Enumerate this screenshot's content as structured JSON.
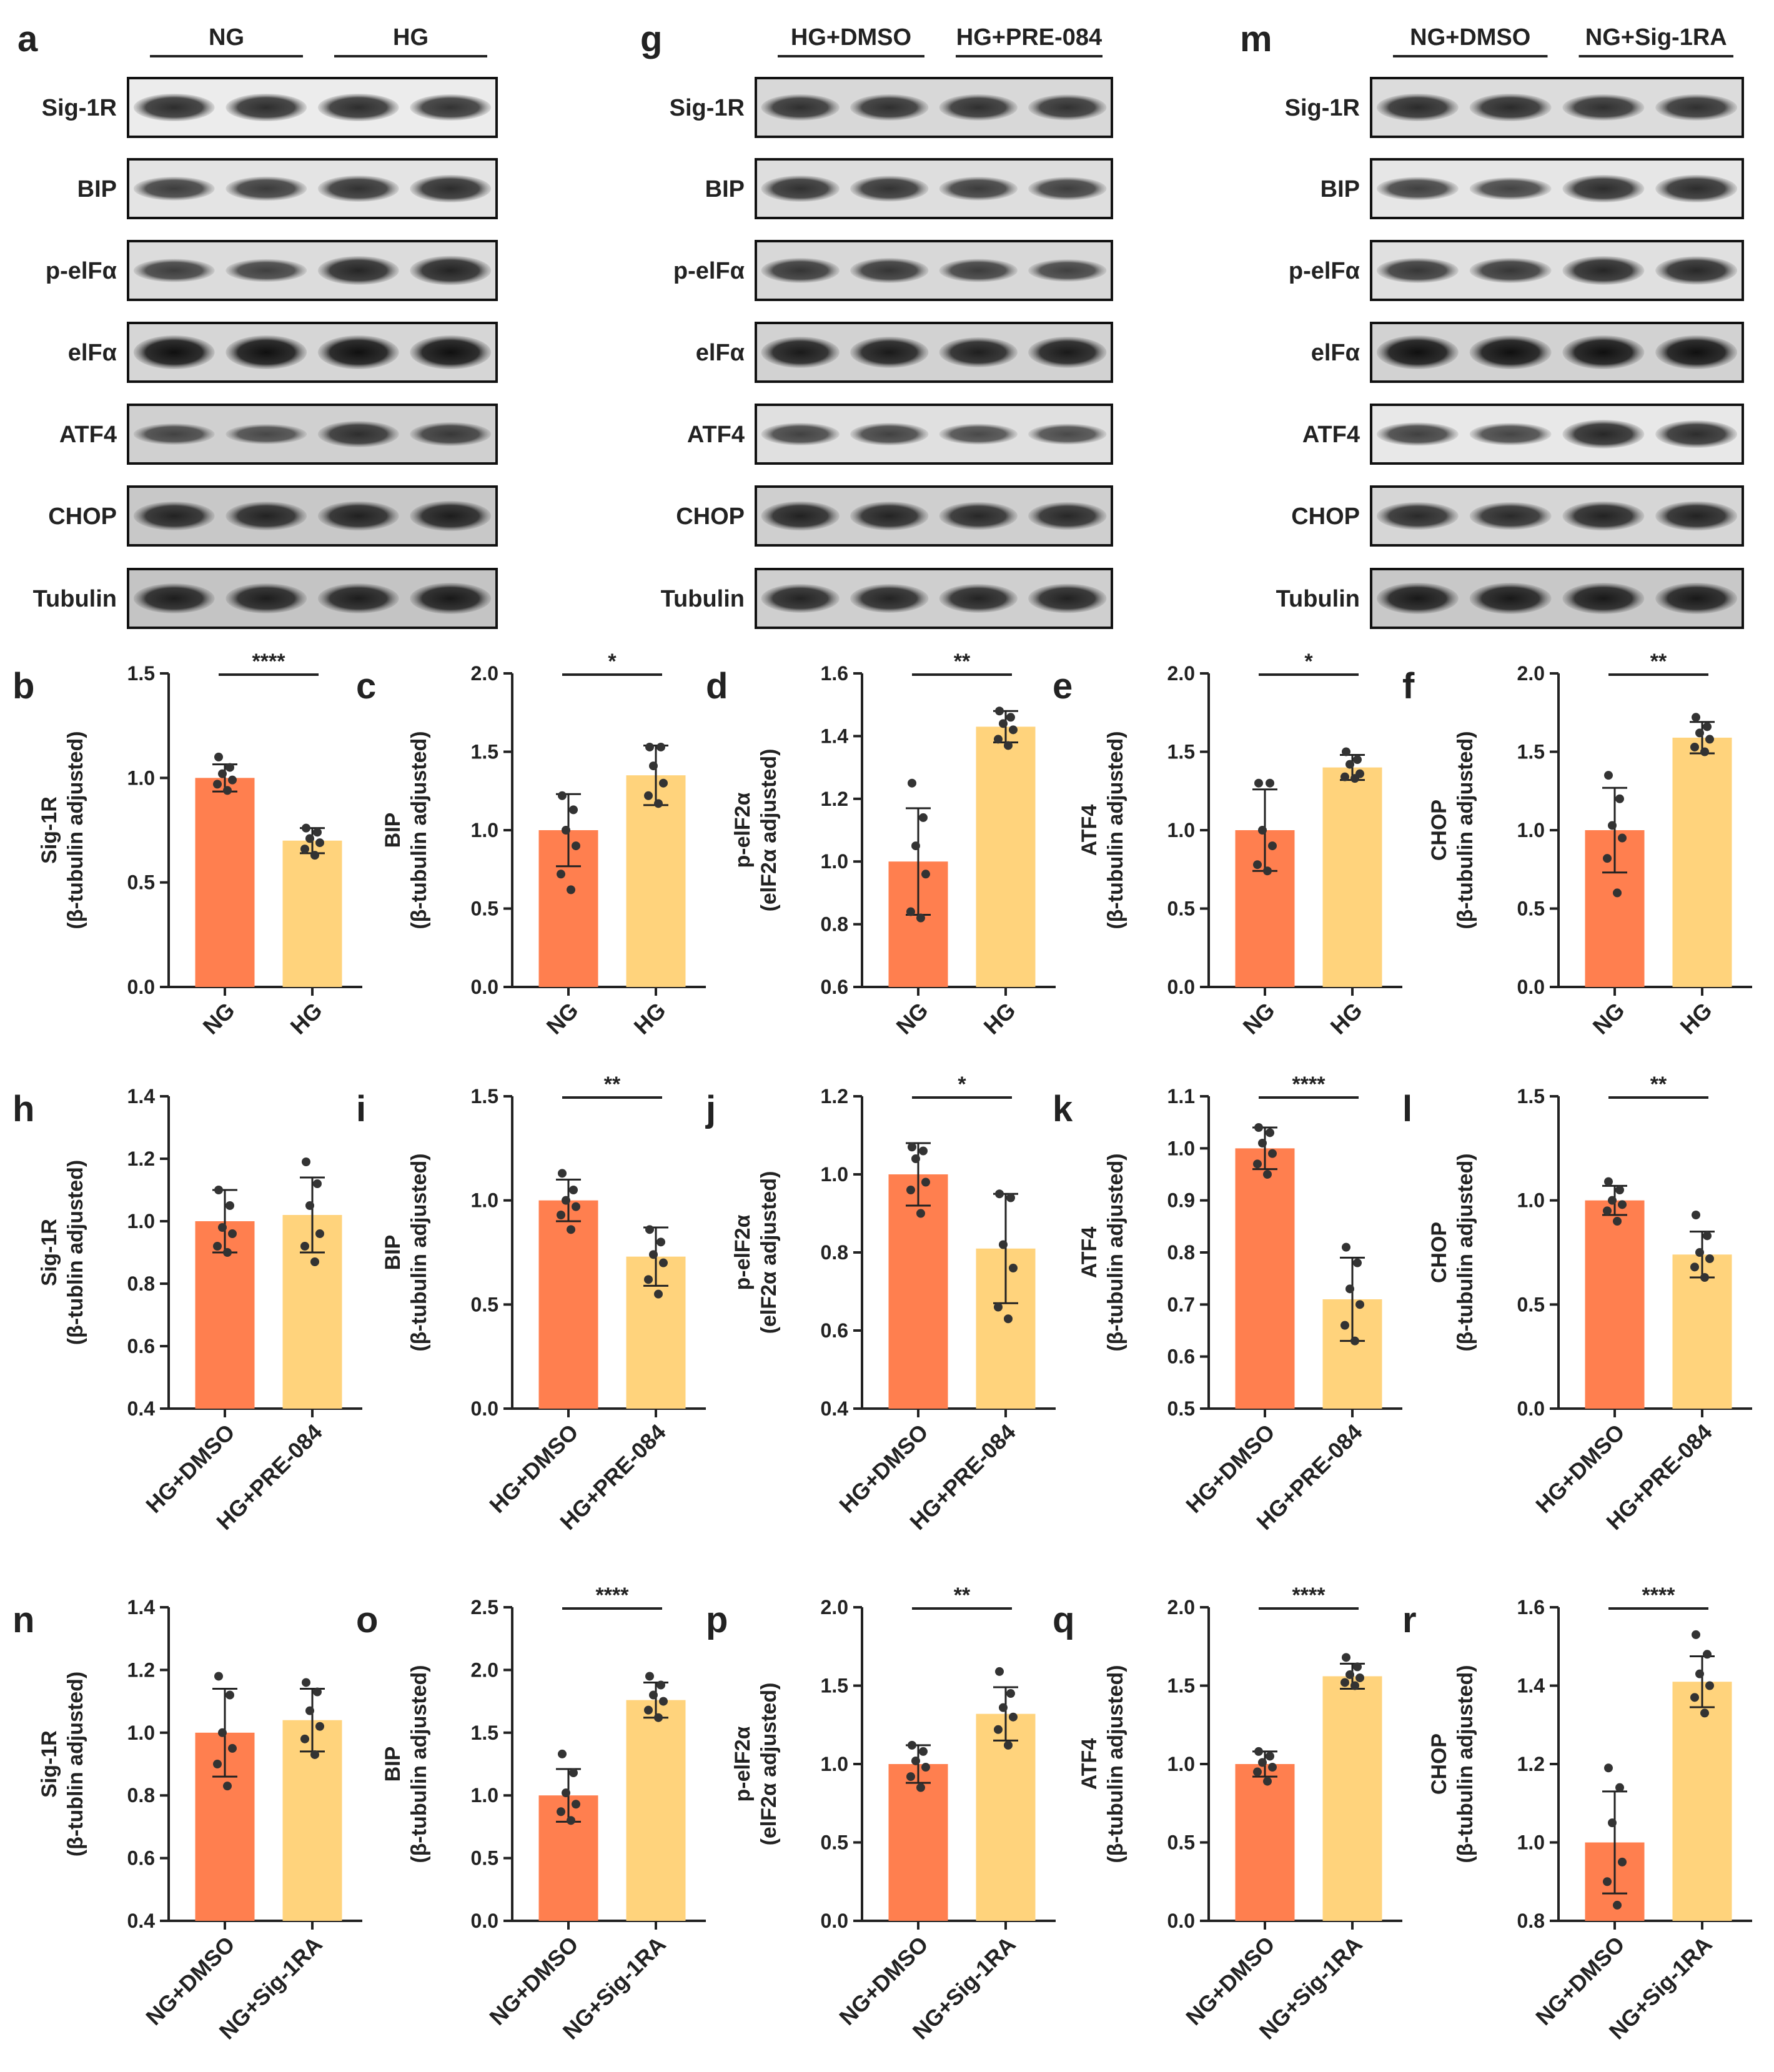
{
  "blot_panels": [
    {
      "letter": "a",
      "groups": [
        "NG",
        "HG"
      ],
      "rows": [
        "Sig-1R",
        "BIP",
        "p-elFα",
        "elFα",
        "ATF4",
        "CHOP",
        "Tubulin"
      ]
    },
    {
      "letter": "g",
      "groups": [
        "HG+DMSO",
        "HG+PRE-084"
      ],
      "rows": [
        "Sig-1R",
        "BIP",
        "p-elFα",
        "elFα",
        "ATF4",
        "CHOP",
        "Tubulin"
      ]
    },
    {
      "letter": "m",
      "groups": [
        "NG+DMSO",
        "NG+Sig-1RA"
      ],
      "rows": [
        "Sig-1R",
        "BIP",
        "p-elFα",
        "elFα",
        "ATF4",
        "CHOP",
        "Tubulin"
      ]
    }
  ],
  "colors": {
    "bar1": "#ff7f4f",
    "bar2": "#ffd37c",
    "axis": "#222222",
    "dot": "#333333"
  },
  "chart_data": [
    {
      "letter": "b",
      "type": "bar",
      "ylabel": [
        "Sig-1R",
        "(β-tubulin adjusted)"
      ],
      "categories": [
        "NG",
        "HG"
      ],
      "values": [
        1.0,
        0.7
      ],
      "errors": [
        0.065,
        0.06
      ],
      "points": [
        [
          1.1,
          1.05,
          1.02,
          0.99,
          0.97,
          0.94
        ],
        [
          0.76,
          0.74,
          0.71,
          0.69,
          0.66,
          0.63
        ]
      ],
      "ylim": [
        0,
        1.5
      ],
      "yticks": [
        "0.0",
        "0.5",
        "1.0",
        "1.5"
      ],
      "significance": "****"
    },
    {
      "letter": "c",
      "type": "bar",
      "ylabel": [
        "BIP",
        "(β-tubulin adjusted)"
      ],
      "categories": [
        "NG",
        "HG"
      ],
      "values": [
        1.0,
        1.35
      ],
      "errors": [
        0.23,
        0.19
      ],
      "points": [
        [
          1.22,
          1.13,
          1.0,
          0.9,
          0.72,
          0.62
        ],
        [
          1.53,
          1.53,
          1.41,
          1.3,
          1.22,
          1.17
        ]
      ],
      "ylim": [
        0,
        2.0
      ],
      "yticks": [
        "0.0",
        "0.5",
        "1.0",
        "1.5",
        "2.0"
      ],
      "significance": "*"
    },
    {
      "letter": "d",
      "type": "bar",
      "ylabel": [
        "p-elF2α",
        "(elF2α adjusted)"
      ],
      "categories": [
        "NG",
        "HG"
      ],
      "values": [
        1.0,
        1.43
      ],
      "errors": [
        0.17,
        0.05
      ],
      "points": [
        [
          1.25,
          1.14,
          1.05,
          0.96,
          0.84,
          0.82
        ],
        [
          1.48,
          1.46,
          1.44,
          1.42,
          1.39,
          1.37
        ]
      ],
      "ylim": [
        0.6,
        1.6
      ],
      "yticks": [
        "0.6",
        "0.8",
        "1.0",
        "1.2",
        "1.4",
        "1.6"
      ],
      "significance": "**"
    },
    {
      "letter": "e",
      "type": "bar",
      "ylabel": [
        "ATF4",
        "(β-tubulin adjusted)"
      ],
      "categories": [
        "NG",
        "HG"
      ],
      "values": [
        1.0,
        1.4
      ],
      "errors": [
        0.26,
        0.08
      ],
      "points": [
        [
          1.3,
          1.3,
          1.0,
          0.9,
          0.78,
          0.74
        ],
        [
          1.5,
          1.45,
          1.42,
          1.36,
          1.34,
          1.33
        ]
      ],
      "ylim": [
        0,
        2.0
      ],
      "yticks": [
        "0.0",
        "0.5",
        "1.0",
        "1.5",
        "2.0"
      ],
      "significance": "*"
    },
    {
      "letter": "f",
      "type": "bar",
      "ylabel": [
        "CHOP",
        "(β-tubulin adjusted)"
      ],
      "categories": [
        "NG",
        "HG"
      ],
      "values": [
        1.0,
        1.59
      ],
      "errors": [
        0.27,
        0.1
      ],
      "points": [
        [
          1.35,
          1.2,
          1.03,
          0.95,
          0.82,
          0.6
        ],
        [
          1.72,
          1.66,
          1.62,
          1.58,
          1.53,
          1.5
        ]
      ],
      "ylim": [
        0,
        2.0
      ],
      "yticks": [
        "0.0",
        "0.5",
        "1.0",
        "1.5",
        "2.0"
      ],
      "significance": "**"
    },
    {
      "letter": "h",
      "type": "bar",
      "ylabel": [
        "Sig-1R",
        "(β-tublin adjusted)"
      ],
      "categories": [
        "HG+DMSO",
        "HG+PRE-084"
      ],
      "values": [
        1.0,
        1.02
      ],
      "errors": [
        0.1,
        0.12
      ],
      "points": [
        [
          1.1,
          1.05,
          0.98,
          0.96,
          0.92,
          0.9
        ],
        [
          1.19,
          1.12,
          1.05,
          0.96,
          0.92,
          0.87
        ]
      ],
      "ylim": [
        0.4,
        1.4
      ],
      "yticks": [
        "0.4",
        "0.6",
        "0.8",
        "1.0",
        "1.2",
        "1.4"
      ],
      "significance": ""
    },
    {
      "letter": "i",
      "type": "bar",
      "ylabel": [
        "BIP",
        "(β-tubulin adjusted)"
      ],
      "categories": [
        "HG+DMSO",
        "HG+PRE-084"
      ],
      "values": [
        1.0,
        0.73
      ],
      "errors": [
        0.1,
        0.14
      ],
      "points": [
        [
          1.13,
          1.05,
          1.0,
          0.97,
          0.93,
          0.86
        ],
        [
          0.86,
          0.8,
          0.74,
          0.7,
          0.62,
          0.55
        ]
      ],
      "ylim": [
        0,
        1.5
      ],
      "yticks": [
        "0.0",
        "0.5",
        "1.0",
        "1.5"
      ],
      "significance": "**"
    },
    {
      "letter": "j",
      "type": "bar",
      "ylabel": [
        "p-elF2α",
        "(elF2α adjusted)"
      ],
      "categories": [
        "HG+DMSO",
        "HG+PRE-084"
      ],
      "values": [
        1.0,
        0.81
      ],
      "errors": [
        0.08,
        0.14
      ],
      "points": [
        [
          1.07,
          1.06,
          1.04,
          0.98,
          0.96,
          0.9
        ],
        [
          0.95,
          0.94,
          0.82,
          0.76,
          0.66,
          0.63
        ]
      ],
      "ylim": [
        0.4,
        1.2
      ],
      "yticks": [
        "0.4",
        "0.6",
        "0.8",
        "1.0",
        "1.2"
      ],
      "significance": "*"
    },
    {
      "letter": "k",
      "type": "bar",
      "ylabel": [
        "ATF4",
        "(β-tubulin adjusted)"
      ],
      "categories": [
        "HG+DMSO",
        "HG+PRE-084"
      ],
      "values": [
        1.0,
        0.71
      ],
      "errors": [
        0.04,
        0.08
      ],
      "points": [
        [
          1.04,
          1.03,
          1.01,
          0.99,
          0.97,
          0.95
        ],
        [
          0.81,
          0.78,
          0.73,
          0.7,
          0.66,
          0.63
        ]
      ],
      "ylim": [
        0.5,
        1.1
      ],
      "yticks": [
        "0.5",
        "0.6",
        "0.7",
        "0.8",
        "0.9",
        "1.0",
        "1.1"
      ],
      "significance": "****"
    },
    {
      "letter": "l",
      "type": "bar",
      "ylabel": [
        "CHOP",
        "(β-tubulin adjusted)"
      ],
      "categories": [
        "HG+DMSO",
        "HG+PRE-084"
      ],
      "values": [
        1.0,
        0.74
      ],
      "errors": [
        0.07,
        0.11
      ],
      "points": [
        [
          1.09,
          1.05,
          1.0,
          0.98,
          0.95,
          0.9
        ],
        [
          0.93,
          0.83,
          0.75,
          0.72,
          0.68,
          0.63
        ]
      ],
      "ylim": [
        0,
        1.5
      ],
      "yticks": [
        "0.0",
        "0.5",
        "1.0",
        "1.5"
      ],
      "significance": "**"
    },
    {
      "letter": "n",
      "type": "bar",
      "ylabel": [
        "Sig-1R",
        "(β-tublin adjusted)"
      ],
      "categories": [
        "NG+DMSO",
        "NG+Sig-1RA"
      ],
      "values": [
        1.0,
        1.04
      ],
      "errors": [
        0.14,
        0.1
      ],
      "points": [
        [
          1.18,
          1.12,
          1.0,
          0.95,
          0.9,
          0.83
        ],
        [
          1.16,
          1.13,
          1.07,
          1.02,
          0.98,
          0.93
        ]
      ],
      "ylim": [
        0.4,
        1.4
      ],
      "yticks": [
        "0.4",
        "0.6",
        "0.8",
        "1.0",
        "1.2",
        "1.4"
      ],
      "significance": ""
    },
    {
      "letter": "o",
      "type": "bar",
      "ylabel": [
        "BIP",
        "(β-tubulin adjusted)"
      ],
      "categories": [
        "NG+DMSO",
        "NG+Sig-1RA"
      ],
      "values": [
        1.0,
        1.76
      ],
      "errors": [
        0.21,
        0.14
      ],
      "points": [
        [
          1.33,
          1.18,
          1.02,
          0.93,
          0.87,
          0.8
        ],
        [
          1.95,
          1.88,
          1.8,
          1.75,
          1.68,
          1.62
        ]
      ],
      "ylim": [
        0,
        2.5
      ],
      "yticks": [
        "0.0",
        "0.5",
        "1.0",
        "1.5",
        "2.0",
        "2.5"
      ],
      "significance": "****"
    },
    {
      "letter": "p",
      "type": "bar",
      "ylabel": [
        "p-elF2α",
        "(elF2α adjusted)"
      ],
      "categories": [
        "NG+DMSO",
        "NG+Sig-1RA"
      ],
      "values": [
        1.0,
        1.32
      ],
      "errors": [
        0.12,
        0.17
      ],
      "points": [
        [
          1.12,
          1.08,
          1.02,
          0.98,
          0.92,
          0.85
        ],
        [
          1.59,
          1.45,
          1.36,
          1.3,
          1.22,
          1.12
        ]
      ],
      "ylim": [
        0,
        2.0
      ],
      "yticks": [
        "0.0",
        "0.5",
        "1.0",
        "1.5",
        "2.0"
      ],
      "significance": "**"
    },
    {
      "letter": "q",
      "type": "bar",
      "ylabel": [
        "ATF4",
        "(β-tubulin adjusted)"
      ],
      "categories": [
        "NG+DMSO",
        "NG+Sig-1RA"
      ],
      "values": [
        1.0,
        1.56
      ],
      "errors": [
        0.08,
        0.08
      ],
      "points": [
        [
          1.08,
          1.05,
          1.01,
          0.98,
          0.95,
          0.89
        ],
        [
          1.68,
          1.62,
          1.57,
          1.55,
          1.52,
          1.5
        ]
      ],
      "ylim": [
        0,
        2.0
      ],
      "yticks": [
        "0.0",
        "0.5",
        "1.0",
        "1.5",
        "2.0"
      ],
      "significance": "****"
    },
    {
      "letter": "r",
      "type": "bar",
      "ylabel": [
        "CHOP",
        "(β-tubulin adjusted)"
      ],
      "categories": [
        "NG+DMSO",
        "NG+Sig-1RA"
      ],
      "values": [
        1.0,
        1.41
      ],
      "errors": [
        0.13,
        0.065
      ],
      "points": [
        [
          1.19,
          1.14,
          1.05,
          0.95,
          0.9,
          0.84
        ],
        [
          1.53,
          1.48,
          1.43,
          1.4,
          1.37,
          1.33
        ]
      ],
      "ylim": [
        0.8,
        1.6
      ],
      "yticks": [
        "0.8",
        "1.0",
        "1.2",
        "1.4",
        "1.6"
      ],
      "significance": "****"
    }
  ]
}
